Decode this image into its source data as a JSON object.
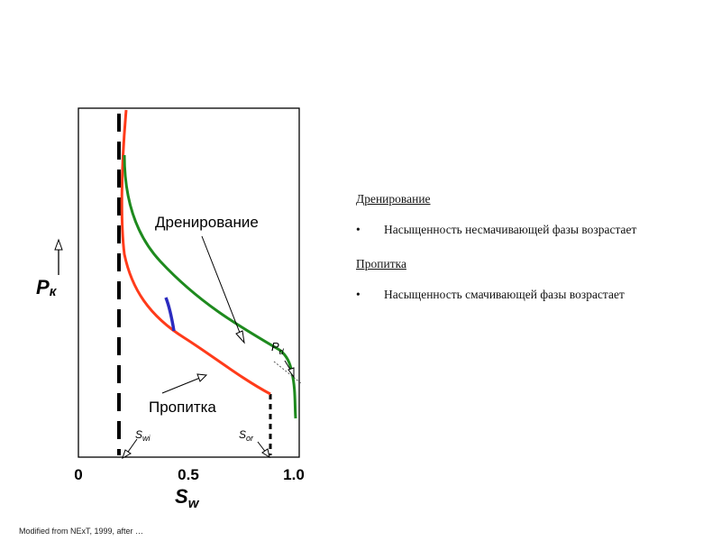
{
  "figure": {
    "y_axis_symbol": "P",
    "y_axis_subscript": "к",
    "x_axis_symbol": "S",
    "x_axis_subscript": "w",
    "tick_labels": [
      "0",
      "0.5",
      "1.0"
    ],
    "curve_labels": {
      "drainage": "Дренирование",
      "imbibition": "Пропитка"
    },
    "markers": {
      "swi": {
        "symbol": "S",
        "subscript": "wi"
      },
      "sor": {
        "symbol": "S",
        "subscript": "or"
      },
      "pd": {
        "symbol": "P",
        "subscript": "d"
      }
    },
    "colors": {
      "drainage": "#1e8a1e",
      "imbibition": "#ff3b1a",
      "hysteresis": "#2b2bbf",
      "axes": "#000000"
    }
  },
  "notes": {
    "drainage_heading": "Дренирование",
    "drainage_text": "Насыщенность несмачивающей фазы возрастает",
    "imbibition_heading": "Пропитка",
    "imbibition_text": "Насыщенность смачивающей фазы возрастает"
  },
  "footer": {
    "source": "Modified from NExT, 1999, after …"
  }
}
